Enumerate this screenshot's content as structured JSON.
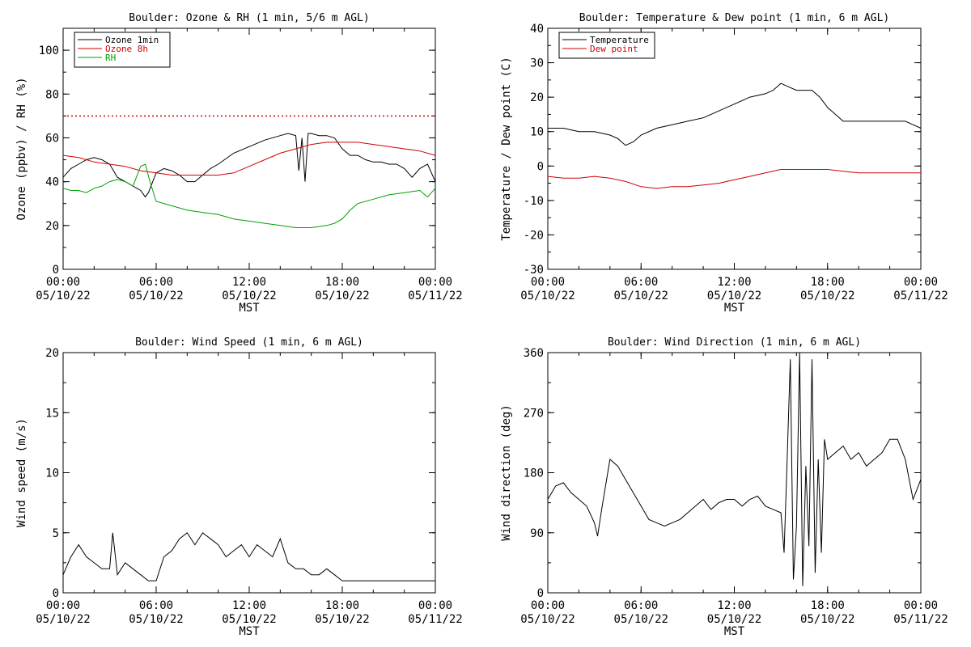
{
  "chart_data": [
    {
      "type": "line",
      "title": "Boulder: Ozone & RH (1 min, 5/6 m AGL)",
      "ylabel": "Ozone (ppbv) / RH (%)",
      "xlabel": "MST",
      "ylim": [
        0,
        110
      ],
      "yticks": [
        0,
        20,
        40,
        60,
        80,
        100
      ],
      "xlim": [
        0,
        24
      ],
      "xticks": [
        {
          "x": 0,
          "time": "00:00",
          "date": "05/10/22"
        },
        {
          "x": 6,
          "time": "06:00",
          "date": "05/10/22"
        },
        {
          "x": 12,
          "time": "12:00",
          "date": "05/10/22"
        },
        {
          "x": 18,
          "time": "18:00",
          "date": "05/10/22"
        },
        {
          "x": 24,
          "time": "00:00",
          "date": "05/11/22"
        }
      ],
      "legend_position": "top-left",
      "reference_line": {
        "y": 70,
        "color": "#d00000",
        "style": "dotted"
      },
      "series": [
        {
          "name": "Ozone 1min",
          "color": "#000000",
          "x": [
            0,
            0.5,
            1,
            1.5,
            2,
            2.5,
            3,
            3.5,
            4,
            4.5,
            5,
            5.3,
            5.5,
            6,
            6.5,
            7,
            7.5,
            8,
            8.5,
            9,
            9.5,
            10,
            11,
            12,
            13,
            14,
            14.5,
            15,
            15.2,
            15.4,
            15.6,
            15.8,
            16,
            16.5,
            17,
            17.5,
            18,
            18.5,
            19,
            19.5,
            20,
            20.5,
            21,
            21.5,
            22,
            22.5,
            23,
            23.5,
            24
          ],
          "y": [
            42,
            46,
            48,
            50,
            51,
            50,
            48,
            42,
            40,
            38,
            36,
            33,
            35,
            44,
            46,
            45,
            43,
            40,
            40,
            43,
            46,
            48,
            53,
            56,
            59,
            61,
            62,
            61,
            45,
            60,
            40,
            62,
            62,
            61,
            61,
            60,
            55,
            52,
            52,
            50,
            49,
            49,
            48,
            48,
            46,
            42,
            46,
            48,
            40
          ]
        },
        {
          "name": "Ozone 8h",
          "color": "#d00000",
          "x": [
            0,
            1,
            2,
            3,
            4,
            5,
            6,
            7,
            8,
            9,
            10,
            11,
            12,
            13,
            14,
            15,
            16,
            17,
            18,
            19,
            20,
            21,
            22,
            23,
            24
          ],
          "y": [
            52,
            51,
            49,
            48,
            47,
            45,
            44,
            43,
            43,
            43,
            43,
            44,
            47,
            50,
            53,
            55,
            57,
            58,
            58,
            58,
            57,
            56,
            55,
            54,
            52
          ]
        },
        {
          "name": "RH",
          "color": "#00a000",
          "x": [
            0,
            0.5,
            1,
            1.5,
            2,
            2.5,
            3,
            3.5,
            4,
            4.5,
            5,
            5.3,
            5.6,
            6,
            7,
            8,
            9,
            10,
            11,
            12,
            13,
            14,
            15,
            16,
            17,
            17.5,
            18,
            18.5,
            19,
            20,
            21,
            22,
            23,
            23.5,
            24
          ],
          "y": [
            37,
            36,
            36,
            35,
            37,
            38,
            40,
            41,
            40,
            38,
            47,
            48,
            40,
            31,
            29,
            27,
            26,
            25,
            23,
            22,
            21,
            20,
            19,
            19,
            20,
            21,
            23,
            27,
            30,
            32,
            34,
            35,
            36,
            33,
            37
          ]
        }
      ]
    },
    {
      "type": "line",
      "title": "Boulder: Temperature & Dew point (1 min, 6 m AGL)",
      "ylabel": "Temperature / Dew point (C)",
      "xlabel": "MST",
      "ylim": [
        -30,
        40
      ],
      "yticks": [
        -30,
        -20,
        -10,
        0,
        10,
        20,
        30,
        40
      ],
      "xlim": [
        0,
        24
      ],
      "xticks": [
        {
          "x": 0,
          "time": "00:00",
          "date": "05/10/22"
        },
        {
          "x": 6,
          "time": "06:00",
          "date": "05/10/22"
        },
        {
          "x": 12,
          "time": "12:00",
          "date": "05/10/22"
        },
        {
          "x": 18,
          "time": "18:00",
          "date": "05/10/22"
        },
        {
          "x": 24,
          "time": "00:00",
          "date": "05/11/22"
        }
      ],
      "legend_position": "top-left",
      "series": [
        {
          "name": "Temperature",
          "color": "#000000",
          "x": [
            0,
            1,
            2,
            3,
            4,
            4.5,
            5,
            5.5,
            6,
            7,
            8,
            9,
            10,
            11,
            12,
            13,
            14,
            14.5,
            15,
            15.5,
            16,
            16.5,
            17,
            17.5,
            18,
            18.5,
            19,
            20,
            21,
            22,
            23,
            23.5,
            24
          ],
          "y": [
            11,
            11,
            10,
            10,
            9,
            8,
            6,
            7,
            9,
            11,
            12,
            13,
            14,
            16,
            18,
            20,
            21,
            22,
            24,
            23,
            22,
            22,
            22,
            20,
            17,
            15,
            13,
            13,
            13,
            13,
            13,
            12,
            11
          ]
        },
        {
          "name": "Dew point",
          "color": "#d00000",
          "x": [
            0,
            1,
            2,
            3,
            4,
            5,
            6,
            7,
            8,
            9,
            10,
            11,
            12,
            13,
            14,
            15,
            16,
            17,
            18,
            19,
            20,
            21,
            22,
            23,
            24
          ],
          "y": [
            -3,
            -3.5,
            -3.5,
            -3,
            -3.5,
            -4.5,
            -6,
            -6.5,
            -6,
            -6,
            -5.5,
            -5,
            -4,
            -3,
            -2,
            -1,
            -1,
            -1,
            -1,
            -1.5,
            -2,
            -2,
            -2,
            -2,
            -2
          ]
        }
      ]
    },
    {
      "type": "line",
      "title": "Boulder: Wind Speed (1 min, 6 m AGL)",
      "ylabel": "Wind speed (m/s)",
      "xlabel": "MST",
      "ylim": [
        0,
        20
      ],
      "yticks": [
        0,
        5,
        10,
        15,
        20
      ],
      "xlim": [
        0,
        24
      ],
      "xticks": [
        {
          "x": 0,
          "time": "00:00",
          "date": "05/10/22"
        },
        {
          "x": 6,
          "time": "06:00",
          "date": "05/10/22"
        },
        {
          "x": 12,
          "time": "12:00",
          "date": "05/10/22"
        },
        {
          "x": 18,
          "time": "18:00",
          "date": "05/10/22"
        },
        {
          "x": 24,
          "time": "00:00",
          "date": "05/11/22"
        }
      ],
      "series": [
        {
          "name": "",
          "color": "#000000",
          "x": [
            0,
            0.5,
            1,
            1.5,
            2,
            2.5,
            3,
            3.2,
            3.5,
            4,
            4.5,
            5,
            5.5,
            6,
            6.5,
            7,
            7.5,
            8,
            8.5,
            9,
            9.5,
            10,
            10.5,
            11,
            11.5,
            12,
            12.5,
            13,
            13.5,
            14,
            14.5,
            15,
            15.5,
            16,
            16.5,
            17,
            17.5,
            18,
            19,
            20,
            21,
            22,
            23,
            24
          ],
          "y": [
            1.5,
            3,
            4,
            3,
            2.5,
            2,
            2,
            5,
            1.5,
            2.5,
            2,
            1.5,
            1,
            1,
            3,
            3.5,
            4.5,
            5,
            4,
            5,
            4.5,
            4,
            3,
            3.5,
            4,
            3,
            4,
            3.5,
            3,
            4.5,
            2.5,
            2,
            2,
            1.5,
            1.5,
            2,
            1.5,
            1,
            1,
            1,
            1,
            1,
            1,
            1
          ]
        }
      ]
    },
    {
      "type": "line",
      "title": "Boulder: Wind Direction (1 min, 6 m AGL)",
      "ylabel": "Wind direction (deg)",
      "xlabel": "MST",
      "ylim": [
        0,
        360
      ],
      "yticks": [
        0,
        90,
        180,
        270,
        360
      ],
      "xlim": [
        0,
        24
      ],
      "xticks": [
        {
          "x": 0,
          "time": "00:00",
          "date": "05/10/22"
        },
        {
          "x": 6,
          "time": "06:00",
          "date": "05/10/22"
        },
        {
          "x": 12,
          "time": "12:00",
          "date": "05/10/22"
        },
        {
          "x": 18,
          "time": "18:00",
          "date": "05/10/22"
        },
        {
          "x": 24,
          "time": "00:00",
          "date": "05/11/22"
        }
      ],
      "series": [
        {
          "name": "",
          "color": "#000000",
          "x": [
            0,
            0.5,
            1,
            1.5,
            2,
            2.5,
            3,
            3.2,
            3.5,
            4,
            4.5,
            5,
            5.5,
            6,
            6.5,
            7,
            7.5,
            8,
            8.5,
            9,
            9.5,
            10,
            10.5,
            11,
            11.5,
            12,
            12.5,
            13,
            13.5,
            14,
            14.5,
            15,
            15.2,
            15.4,
            15.6,
            15.8,
            16,
            16.2,
            16.4,
            16.6,
            16.8,
            17,
            17.2,
            17.4,
            17.6,
            17.8,
            18,
            18.5,
            19,
            19.5,
            20,
            20.5,
            21,
            21.5,
            22,
            22.5,
            23,
            23.5,
            24
          ],
          "y": [
            140,
            160,
            165,
            150,
            140,
            130,
            105,
            85,
            130,
            200,
            190,
            170,
            150,
            130,
            110,
            105,
            100,
            105,
            110,
            120,
            130,
            140,
            125,
            135,
            140,
            140,
            130,
            140,
            145,
            130,
            125,
            120,
            60,
            200,
            350,
            20,
            100,
            360,
            10,
            190,
            70,
            350,
            30,
            200,
            60,
            230,
            200,
            210,
            220,
            200,
            210,
            190,
            200,
            210,
            230,
            230,
            200,
            140,
            170
          ]
        }
      ]
    }
  ]
}
